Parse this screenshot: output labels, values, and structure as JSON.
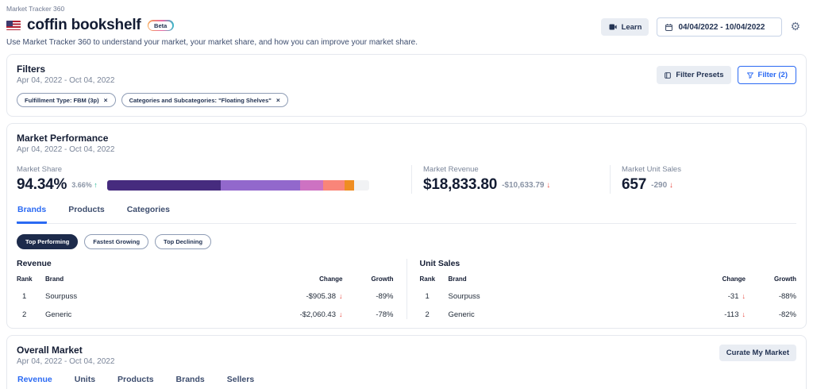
{
  "icons": {
    "close": "×",
    "arrow_up": "↑",
    "arrow_down": "↓",
    "gear": "⚙"
  },
  "colors": {
    "accent_blue": "#2b6af3",
    "negative_red": "#e8483f",
    "positive_teal": "#19b392",
    "pill_dark": "#1d2b4b"
  },
  "header": {
    "breadcrumb": "Market Tracker 360",
    "title": "coffin bookshelf",
    "beta_label": "Beta",
    "subtitle": "Use Market Tracker 360 to understand your market, your market share, and how you can improve your market share.",
    "learn_label": "Learn",
    "date_range": "04/04/2022 - 10/04/2022"
  },
  "filters_card": {
    "title": "Filters",
    "date_range": "Apr 04, 2022 - Oct 04, 2022",
    "chips": [
      {
        "label": "Fulfillment Type: FBM (3p)"
      },
      {
        "label": "Categories and Subcategories: \"Floating Shelves\""
      }
    ],
    "filter_presets_label": "Filter Presets",
    "filter_label": "Filter (2)"
  },
  "market_performance": {
    "title": "Market Performance",
    "date_range": "Apr 04, 2022 - Oct 04, 2022",
    "market_share": {
      "label": "Market Share",
      "value": "94.34%",
      "change": "3.66%",
      "change_direction": "up"
    },
    "share_bar": {
      "segments": [
        {
          "name": "segment-1",
          "color": "#462b7e",
          "percent": 43.5
        },
        {
          "name": "segment-2",
          "color": "#9268cc",
          "percent": 30.3
        },
        {
          "name": "segment-3",
          "color": "#cd72c2",
          "percent": 8.7
        },
        {
          "name": "segment-4",
          "color": "#f98579",
          "percent": 8.1
        },
        {
          "name": "segment-5",
          "color": "#ef8d22",
          "percent": 3.7
        },
        {
          "name": "remainder",
          "color": "#f1f2f4",
          "percent": 5.7
        }
      ]
    },
    "market_revenue": {
      "label": "Market Revenue",
      "value": "$18,833.80",
      "change": "-$10,633.79",
      "change_direction": "down"
    },
    "market_unit_sales": {
      "label": "Market Unit Sales",
      "value": "657",
      "change": "-290",
      "change_direction": "down"
    },
    "tabs": [
      {
        "label": "Brands",
        "active": true
      },
      {
        "label": "Products",
        "active": false
      },
      {
        "label": "Categories",
        "active": false
      }
    ],
    "pills": [
      {
        "label": "Top Performing",
        "active": true
      },
      {
        "label": "Fastest Growing",
        "active": false
      },
      {
        "label": "Top Declining",
        "active": false
      }
    ],
    "revenue_table": {
      "title": "Revenue",
      "columns": [
        "Rank",
        "Brand",
        "Change",
        "Growth"
      ],
      "rows": [
        {
          "rank": "1",
          "brand": "Sourpuss",
          "change": "-$905.38",
          "growth": "-89%"
        },
        {
          "rank": "2",
          "brand": "Generic",
          "change": "-$2,060.43",
          "growth": "-78%"
        }
      ]
    },
    "unit_sales_table": {
      "title": "Unit Sales",
      "columns": [
        "Rank",
        "Brand",
        "Change",
        "Growth"
      ],
      "rows": [
        {
          "rank": "1",
          "brand": "Sourpuss",
          "change": "-31",
          "growth": "-88%"
        },
        {
          "rank": "2",
          "brand": "Generic",
          "change": "-113",
          "growth": "-82%"
        }
      ]
    }
  },
  "overall_market": {
    "title": "Overall Market",
    "date_range": "Apr 04, 2022 - Oct 04, 2022",
    "curate_button_label": "Curate My Market",
    "tabs": [
      {
        "label": "Revenue",
        "active": true
      },
      {
        "label": "Units",
        "active": false
      },
      {
        "label": "Products",
        "active": false
      },
      {
        "label": "Brands",
        "active": false
      },
      {
        "label": "Sellers",
        "active": false
      }
    ]
  }
}
